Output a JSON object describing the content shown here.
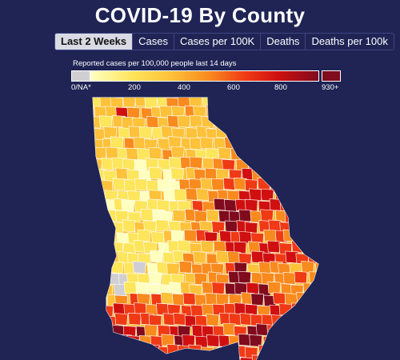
{
  "title": "COVID-19 By County",
  "tabs": [
    {
      "label": "Last 2 Weeks",
      "active": true
    },
    {
      "label": "Cases",
      "active": false
    },
    {
      "label": "Cases per 100K",
      "active": false
    },
    {
      "label": "Deaths",
      "active": false
    },
    {
      "label": "Deaths per 100k",
      "active": false
    }
  ],
  "legend": {
    "title": "Reported cases per 100,000 people last 14 days",
    "na_label": "0/NA*",
    "ticks": [
      "200",
      "400",
      "600",
      "800"
    ],
    "max_label": "930+",
    "colors": {
      "na": "#cfcfd2",
      "max": "#800b1d"
    }
  },
  "map": {
    "state": "Georgia",
    "background": "#1f2455",
    "palette": [
      "#ffffc0",
      "#fde55c",
      "#fdc13a",
      "#f88a1e",
      "#ef3a15",
      "#d01010",
      "#800b1d"
    ]
  }
}
